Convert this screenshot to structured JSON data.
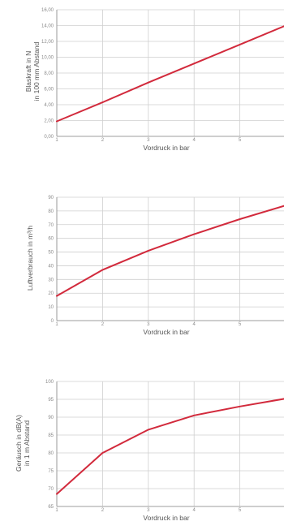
{
  "colors": {
    "line": "#d22a3c",
    "grid": "#cfcfcf",
    "axis": "#8a8a8a",
    "text": "#555555"
  },
  "chart_data": [
    {
      "type": "line",
      "xlabel": "Vordruck in bar",
      "ylabel_lines": [
        "Blaskraft in N",
        "in 100 mm Abstand"
      ],
      "xlim": [
        1,
        6
      ],
      "ylim": [
        0,
        16
      ],
      "x_ticks": [
        "1",
        "2",
        "3",
        "4",
        "5"
      ],
      "y_ticks": [
        "0,00",
        "2,00",
        "4,00",
        "6,00",
        "8,00",
        "10,00",
        "12,00",
        "14,00",
        "16,00"
      ],
      "series": [
        {
          "x": [
            1,
            2,
            3,
            4,
            5,
            6
          ],
          "values": [
            1.9,
            4.3,
            6.8,
            9.2,
            11.6,
            14.0
          ]
        }
      ]
    },
    {
      "type": "line",
      "xlabel": "Vordruck in bar",
      "ylabel_lines": [
        "Luftverbrauch in m³/h"
      ],
      "xlim": [
        1,
        6
      ],
      "ylim": [
        0,
        90
      ],
      "x_ticks": [
        "1",
        "2",
        "3",
        "4",
        "5"
      ],
      "y_ticks": [
        "0",
        "10",
        "20",
        "30",
        "40",
        "50",
        "60",
        "70",
        "80",
        "90"
      ],
      "series": [
        {
          "x": [
            1,
            2,
            3,
            4,
            5,
            6
          ],
          "values": [
            18,
            37,
            51,
            63,
            74,
            84
          ]
        }
      ]
    },
    {
      "type": "line",
      "xlabel": "Vordruck in bar",
      "ylabel_lines": [
        "Geräusch in dB(A)",
        "in 1 m Abstand"
      ],
      "xlim": [
        1,
        6
      ],
      "ylim": [
        65,
        100
      ],
      "x_ticks": [
        "1",
        "2",
        "3",
        "4",
        "5"
      ],
      "y_ticks": [
        "65",
        "70",
        "75",
        "80",
        "85",
        "90",
        "95",
        "100"
      ],
      "series": [
        {
          "x": [
            1,
            2,
            3,
            4,
            5,
            6
          ],
          "values": [
            68.5,
            80,
            86.5,
            90.5,
            93,
            95.2
          ]
        }
      ]
    }
  ]
}
